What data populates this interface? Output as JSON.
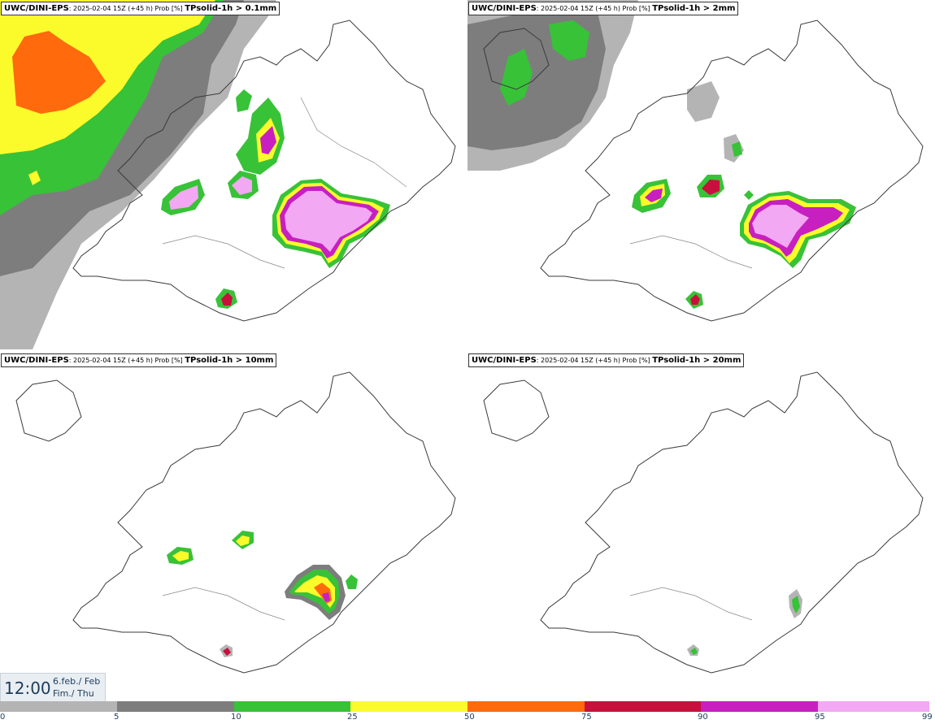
{
  "panels": [
    {
      "model": "UWC/DINI-EPS",
      "info": ": 2025-02-04 15Z (+45 h) Prob [%] ",
      "param": "TPsolid-1h > 0.1mm"
    },
    {
      "model": "UWC/DINI-EPS",
      "info": ": 2025-02-04 15Z (+45 h) Prob [%] ",
      "param": "TPsolid-1h > 2mm"
    },
    {
      "model": "UWC/DINI-EPS",
      "info": ": 2025-02-04 15Z (+45 h) Prob [%] ",
      "param": "TPsolid-1h > 10mm"
    },
    {
      "model": "UWC/DINI-EPS",
      "info": ": 2025-02-04 15Z (+45 h) Prob [%] ",
      "param": "TPsolid-1h > 20mm"
    }
  ],
  "valid_time": {
    "time": "12:00",
    "date_line1": "6.feb./ Feb",
    "date_line2": "Fim./ Thu"
  },
  "legend": {
    "ticks": [
      "0",
      "5",
      "10",
      "25",
      "50",
      "75",
      "90",
      "95",
      "99"
    ],
    "colors": [
      "#ffffff",
      "#b4b4b4",
      "#7d7d7d",
      "#38c238",
      "#fbfb2b",
      "#ff6a0c",
      "#c8103c",
      "#c81fc1",
      "#f2a8f2"
    ]
  },
  "colors": {
    "gray_light": "#b4b4b4",
    "gray_dark": "#7d7d7d",
    "green": "#38c238",
    "yellow": "#fbfb2b",
    "orange": "#ff6a0c",
    "red": "#c8103c",
    "magenta": "#c81fc1",
    "pink": "#f2a8f2",
    "coast": "#3a3a3a"
  }
}
